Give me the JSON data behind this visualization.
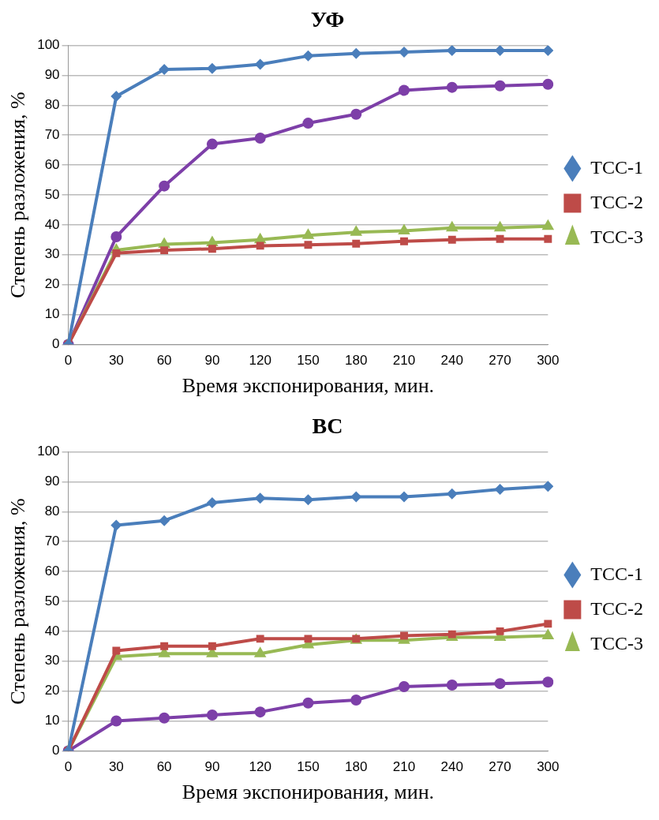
{
  "chart_data": [
    {
      "type": "line",
      "title": "УФ",
      "xlabel": "Время экспонирования, мин.",
      "ylabel": "Степень разложения, %",
      "categories": [
        "0",
        "30",
        "60",
        "90",
        "120",
        "150",
        "180",
        "210",
        "240",
        "270",
        "300"
      ],
      "ylim": [
        0,
        100
      ],
      "yticks": [
        0,
        10,
        20,
        30,
        40,
        50,
        60,
        70,
        80,
        90,
        100
      ],
      "grid": "y",
      "legend": "right",
      "series": [
        {
          "name": "ТСС-1",
          "color": "#4a7ebb",
          "marker": "diamond",
          "values": [
            0,
            83,
            92,
            92.3,
            93.7,
            96.5,
            97.3,
            97.8,
            98.3,
            98.3,
            98.3
          ]
        },
        {
          "name": "ТСС-2",
          "color": "#be4b48",
          "marker": "square",
          "values": [
            0,
            30.5,
            31.5,
            32,
            33,
            33.3,
            33.7,
            34.5,
            35,
            35.3,
            35.3
          ]
        },
        {
          "name": "ТСС-3",
          "color": "#98b954",
          "marker": "triangle",
          "values": [
            0,
            31.5,
            33.5,
            34,
            35,
            36.5,
            37.5,
            38,
            39,
            39,
            39.5
          ]
        },
        {
          "color": "#7d3fa8",
          "marker": "circle",
          "values": [
            0,
            36,
            53,
            67,
            69,
            74,
            77,
            85,
            86,
            86.5,
            87
          ]
        }
      ]
    },
    {
      "type": "line",
      "title": "ВС",
      "xlabel": "Время экспонирования, мин.",
      "ylabel": "Степень разложения, %",
      "categories": [
        "0",
        "30",
        "60",
        "90",
        "120",
        "150",
        "180",
        "210",
        "240",
        "270",
        "300"
      ],
      "ylim": [
        0,
        100
      ],
      "yticks": [
        0,
        10,
        20,
        30,
        40,
        50,
        60,
        70,
        80,
        90,
        100
      ],
      "grid": "y",
      "legend": "right",
      "series": [
        {
          "name": "ТСС-1",
          "color": "#4a7ebb",
          "marker": "diamond",
          "values": [
            0,
            75.5,
            77,
            83,
            84.5,
            84,
            85,
            85,
            86,
            87.5,
            88.5
          ]
        },
        {
          "name": "ТСС-2",
          "color": "#be4b48",
          "marker": "square",
          "values": [
            0,
            33.5,
            35,
            35,
            37.5,
            37.5,
            37.5,
            38.5,
            39,
            40,
            42.5
          ]
        },
        {
          "name": "ТСС-3",
          "color": "#98b954",
          "marker": "triangle",
          "values": [
            0,
            31.5,
            32.5,
            32.5,
            32.5,
            35.5,
            37,
            37,
            38,
            38,
            38.5
          ]
        },
        {
          "color": "#7d3fa8",
          "marker": "circle",
          "values": [
            0,
            10,
            11,
            12,
            13,
            16,
            17,
            21.5,
            22,
            22.5,
            23
          ]
        }
      ]
    }
  ]
}
